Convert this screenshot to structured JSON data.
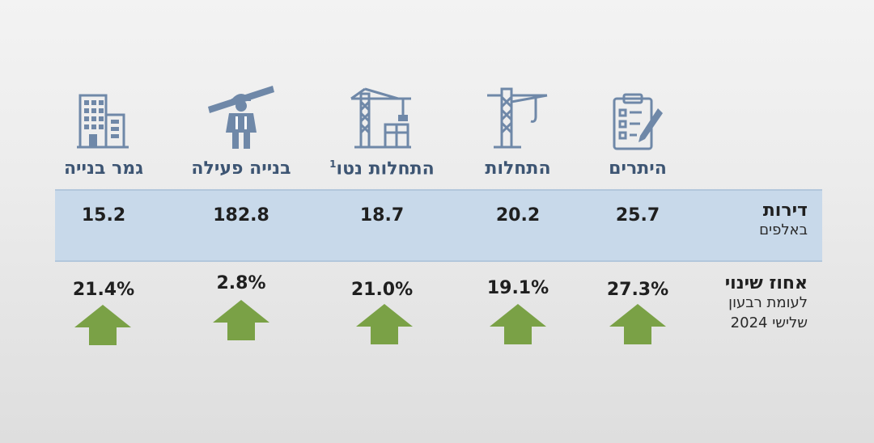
{
  "row_labels": {
    "apartments": {
      "main": "דירות",
      "sub": "באלפים"
    },
    "change": {
      "main": "אחוז שינוי",
      "sub1": "לעומת רבעון",
      "sub2": "שלישי 2024"
    }
  },
  "columns": [
    {
      "title": "היתרים",
      "value": "25.7",
      "change": "27.3%",
      "icon": "clipboard-checklist-icon"
    },
    {
      "title": "התחלות",
      "value": "20.2",
      "change": "19.1%",
      "icon": "tower-crane-icon"
    },
    {
      "title": "התחלות נטו",
      "title_sup": "1",
      "value": "18.7",
      "change": "21.0%",
      "icon": "crane-building-icon"
    },
    {
      "title": "בנייה פעילה",
      "value": "182.8",
      "change": "2.8%",
      "icon": "construction-worker-icon"
    },
    {
      "title": "גמר בנייה",
      "value": "15.2",
      "change": "21.4%",
      "icon": "completed-building-icon"
    }
  ],
  "colors": {
    "icon": "#6f88a8",
    "title": "#3d5573",
    "band": "#c8d9ea",
    "arrow": "#7aa146"
  }
}
